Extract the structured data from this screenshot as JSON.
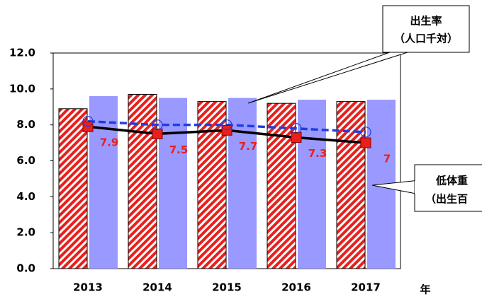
{
  "chart_data": {
    "type": "bar",
    "categories": [
      "2013",
      "2014",
      "2015",
      "2016",
      "2017"
    ],
    "xlabel": "年",
    "ylim": [
      0,
      12
    ],
    "yticks": [
      {
        "value": 0,
        "label": "0.0"
      },
      {
        "value": 2,
        "label": "2.0"
      },
      {
        "value": 4,
        "label": "4.0"
      },
      {
        "value": 6,
        "label": "6.0"
      },
      {
        "value": 8,
        "label": "8.0"
      },
      {
        "value": 10,
        "label": "10.0"
      },
      {
        "value": 12,
        "label": "12.0"
      }
    ],
    "grid": false,
    "series": [
      {
        "kind": "bar",
        "pattern": "hatch",
        "color": "#e8201c",
        "values": [
          8.9,
          9.7,
          9.3,
          9.2,
          9.3
        ]
      },
      {
        "kind": "bar",
        "color": "#9999ff",
        "values": [
          9.6,
          9.5,
          9.5,
          9.4,
          9.4
        ]
      },
      {
        "kind": "line",
        "color": "#000000",
        "marker": "square",
        "marker_color": "#e8201c",
        "labels": true,
        "values": [
          7.9,
          7.5,
          7.7,
          7.3,
          7.0
        ]
      },
      {
        "kind": "line",
        "color": "#1f3fe0",
        "dash": true,
        "marker": "circle",
        "values": [
          8.2,
          8.0,
          8.0,
          7.8,
          7.6
        ]
      }
    ],
    "annotations": [
      {
        "lines": [
          "出生率",
          "（人口千対）"
        ]
      },
      {
        "lines": [
          "低体重",
          "（出生百"
        ]
      }
    ]
  }
}
